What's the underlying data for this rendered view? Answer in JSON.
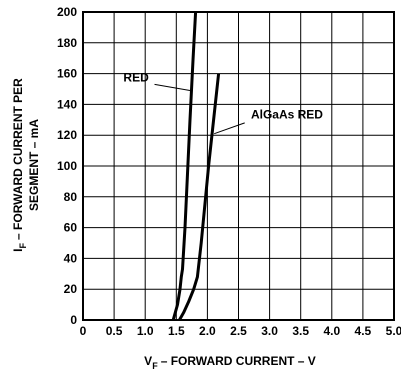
{
  "chart_data": {
    "type": "line",
    "xlabel_main": "V",
    "xlabel_sub": "F",
    "xlabel_rest": "– FORWARD CURRENT – V",
    "ylabel_line1_main": "I",
    "ylabel_line1_sub": "F",
    "ylabel_line1_rest": "– FORWARD CURRENT PER",
    "ylabel_line2": "SEGMENT – mA",
    "xlim": [
      0,
      5.0
    ],
    "ylim": [
      0,
      200
    ],
    "x_ticks": [
      "0",
      "0.5",
      "1.0",
      "1.5",
      "2.0",
      "2.5",
      "3.0",
      "3.5",
      "4.0",
      "4.5",
      "5.0"
    ],
    "x_tick_values": [
      0,
      0.5,
      1.0,
      1.5,
      2.0,
      2.5,
      3.0,
      3.5,
      4.0,
      4.5,
      5.0
    ],
    "y_ticks": [
      "0",
      "20",
      "40",
      "60",
      "80",
      "100",
      "120",
      "140",
      "160",
      "180",
      "200"
    ],
    "y_tick_values": [
      0,
      20,
      40,
      60,
      80,
      100,
      120,
      140,
      160,
      180,
      200
    ],
    "grid": true,
    "series": [
      {
        "name": "RED",
        "x": [
          1.45,
          1.52,
          1.56,
          1.58,
          1.6,
          1.64,
          1.68,
          1.72,
          1.77,
          1.81
        ],
        "y": [
          0,
          10,
          20,
          28,
          33,
          60,
          95,
          130,
          170,
          200
        ]
      },
      {
        "name": "AlGaAs RED",
        "x": [
          1.55,
          1.62,
          1.7,
          1.78,
          1.84,
          1.9,
          1.96,
          2.02,
          2.1,
          2.18
        ],
        "y": [
          0,
          5,
          12,
          20,
          28,
          50,
          75,
          100,
          130,
          160
        ]
      }
    ]
  }
}
